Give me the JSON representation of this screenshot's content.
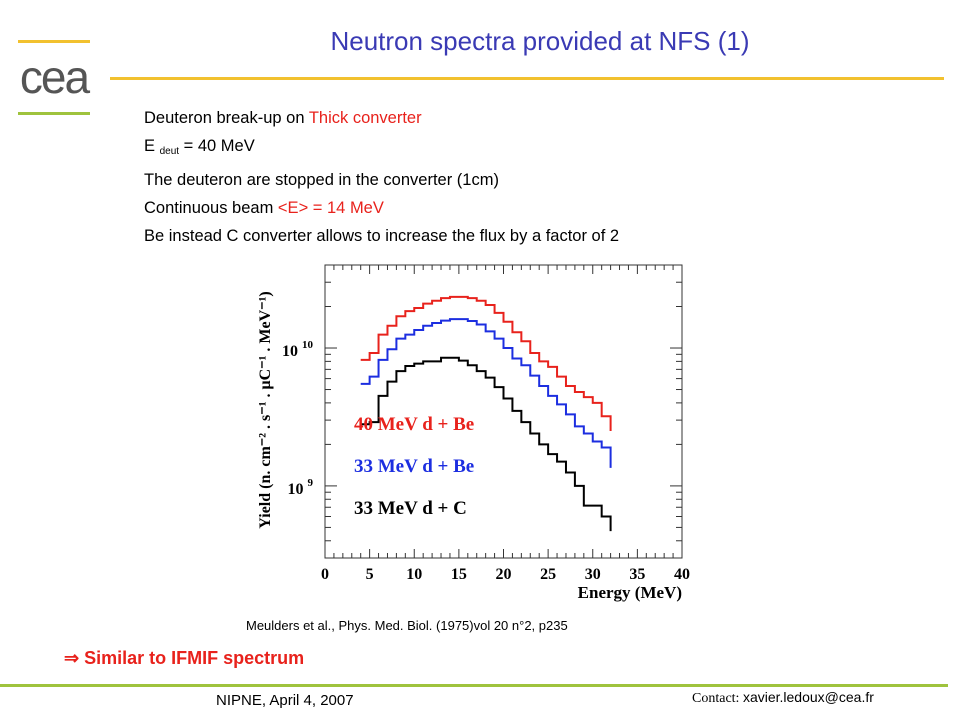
{
  "header": {
    "logo_text": "cea",
    "title": "Neutron spectra provided at NFS (1)"
  },
  "bullets": {
    "b1_prefix": "Deuteron break-up on ",
    "b1_highlight": "Thick converter",
    "b2_prefix": "E ",
    "b2_sub": "deut",
    "b2_suffix": " = 40 MeV",
    "b3": "The deuteron are stopped in the converter (1cm)",
    "b4_prefix": "Continuous beam  ",
    "b4_highlight": "<E> = 14 MeV",
    "b5": "Be instead C converter allows to increase the flux by a factor of 2"
  },
  "colors": {
    "title": "#3a3ab4",
    "highlight": "#e8221c",
    "top_rule": "#f2c12e",
    "bottom_rule": "#9fc33d",
    "series_be40": "#e8221c",
    "series_be33": "#1c2ee0",
    "series_c33": "#000000"
  },
  "chart_data": {
    "type": "line",
    "xlabel": "Energy (MeV)",
    "ylabel": "Yield (n. cm⁻² . s⁻¹ . μC⁻¹ . MeV⁻¹)",
    "y_scale": "log",
    "xlim": [
      0,
      40
    ],
    "ylim": [
      300000000,
      40000000000
    ],
    "x_ticks": [
      "0",
      "5",
      "10",
      "15",
      "20",
      "25",
      "30",
      "35",
      "40"
    ],
    "y_tick_labels": [
      {
        "value": 1000000000,
        "base": "10",
        "exp": "9"
      },
      {
        "value": 10000000000,
        "base": "10",
        "exp": "10"
      }
    ],
    "grid": false,
    "series": [
      {
        "name": "40 MeV d + Be",
        "color": "#e8221c",
        "x": [
          4,
          5,
          6,
          7,
          8,
          9,
          10,
          11,
          12,
          13,
          14,
          15,
          16,
          17,
          18,
          19,
          20,
          21,
          22,
          23,
          24,
          25,
          26,
          27,
          28,
          29,
          30,
          31,
          32
        ],
        "y": [
          8200000000.0,
          9200000000.0,
          12500000000.0,
          14500000000.0,
          17000000000.0,
          18500000000.0,
          19500000000.0,
          21000000000.0,
          22000000000.0,
          23000000000.0,
          23500000000.0,
          23500000000.0,
          23000000000.0,
          22000000000.0,
          20500000000.0,
          18000000000.0,
          15500000000.0,
          13000000000.0,
          11200000000.0,
          9200000000.0,
          8000000000.0,
          7300000000.0,
          6200000000.0,
          5300000000.0,
          4800000000.0,
          4400000000.0,
          4000000000.0,
          3200000000.0,
          2500000000.0
        ]
      },
      {
        "name": "33 MeV d + Be",
        "color": "#1c2ee0",
        "x": [
          4,
          5,
          6,
          7,
          8,
          9,
          10,
          11,
          12,
          13,
          14,
          15,
          16,
          17,
          18,
          19,
          20,
          21,
          22,
          23,
          24,
          25,
          26,
          27,
          28,
          29,
          30,
          31,
          32
        ],
        "y": [
          5500000000.0,
          6200000000.0,
          8200000000.0,
          9800000000.0,
          11700000000.0,
          12500000000.0,
          13500000000.0,
          14500000000.0,
          15200000000.0,
          15800000000.0,
          16200000000.0,
          16200000000.0,
          15700000000.0,
          14800000000.0,
          13200000000.0,
          11700000000.0,
          10000000000.0,
          8400000000.0,
          7500000000.0,
          6300000000.0,
          5300000000.0,
          4500000000.0,
          3900000000.0,
          3300000000.0,
          2700000000.0,
          2400000000.0,
          2100000000.0,
          1900000000.0,
          1350000000.0
        ]
      },
      {
        "name": "33 MeV d + C",
        "color": "#000000",
        "x": [
          4,
          5,
          6,
          7,
          8,
          9,
          10,
          11,
          12,
          13,
          14,
          15,
          16,
          17,
          18,
          19,
          20,
          21,
          22,
          23,
          24,
          25,
          26,
          27,
          28,
          29,
          30,
          31,
          32
        ],
        "y": [
          2800000000.0,
          2900000000.0,
          4500000000.0,
          5700000000.0,
          6800000000.0,
          7400000000.0,
          7700000000.0,
          8000000000.0,
          8000000000.0,
          8500000000.0,
          8500000000.0,
          8100000000.0,
          7500000000.0,
          6800000000.0,
          6100000000.0,
          5200000000.0,
          4300000000.0,
          3500000000.0,
          2900000000.0,
          2400000000.0,
          2000000000.0,
          1700000000.0,
          1500000000.0,
          1250000000.0,
          1000000000.0,
          720000000.0,
          720000000.0,
          600000000.0,
          470000000.0
        ]
      }
    ]
  },
  "citation": "Meulders et al., Phys. Med. Biol. (1975)vol 20 n°2, p235",
  "conclusion": "⇒ Similar to IFMIF spectrum",
  "footer": {
    "left": "NIPNE, April 4, 2007",
    "contact_label": "Contact: ",
    "contact_email": "xavier.ledoux@cea.fr"
  }
}
